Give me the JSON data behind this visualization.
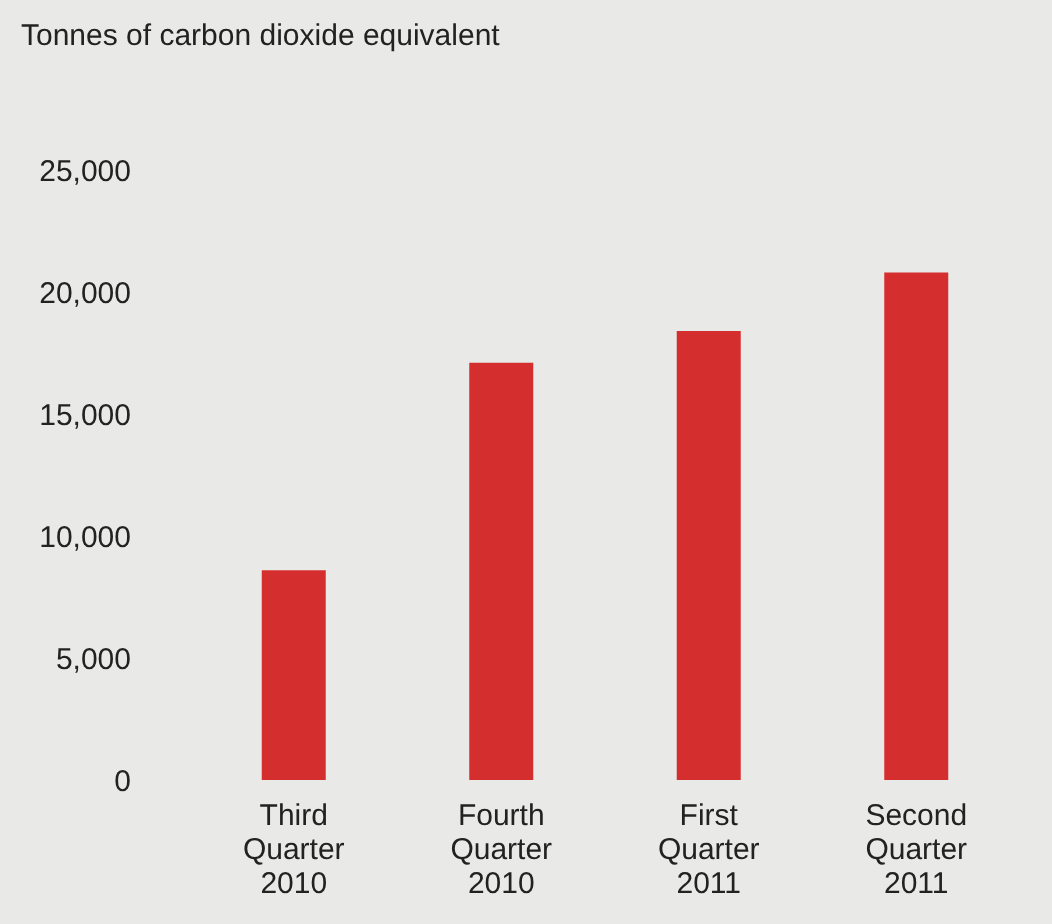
{
  "chart_data": {
    "type": "bar",
    "ylabel": "Tonnes of carbon dioxide equivalent",
    "categories": [
      "Third Quarter 2010",
      "Fourth Quarter 2010",
      "First Quarter 2011",
      "Second Quarter 2011"
    ],
    "values": [
      8600,
      17100,
      18400,
      20800
    ],
    "color": "#d42f2e",
    "ylim": [
      0,
      25000
    ],
    "yticks": [
      0,
      {
        "value": 5000,
        "label": "5,000"
      },
      {
        "value": 10000,
        "label": "10,000"
      },
      {
        "value": 15000,
        "label": "15,000"
      },
      {
        "value": 20000,
        "label": "20,000"
      },
      {
        "value": 25000,
        "label": "25,000"
      }
    ],
    "grid": false
  }
}
